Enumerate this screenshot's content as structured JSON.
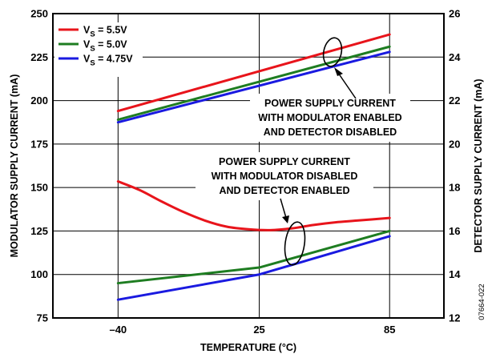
{
  "chart_data": {
    "type": "line",
    "xlabel": "TEMPERATURE (°C)",
    "ylabel_left": "MODULATOR SUPPLY CURRENT (mA)",
    "ylabel_right": "DETECTOR SUPPLY CURRENT (mA)",
    "figure_id": "07664-022",
    "xlim": [
      -70,
      110
    ],
    "ylim_left": [
      75,
      250
    ],
    "ylim_right": [
      12,
      26
    ],
    "x_ticks": [
      {
        "value": -40,
        "label": "–40"
      },
      {
        "value": 25,
        "label": "25"
      },
      {
        "value": 85,
        "label": "85"
      }
    ],
    "y_ticks_left": [
      "75",
      "100",
      "125",
      "150",
      "175",
      "200",
      "225",
      "250"
    ],
    "y_ticks_right": [
      "12",
      "14",
      "16",
      "18",
      "20",
      "22",
      "24",
      "26"
    ],
    "grid": true,
    "legend_position": "top-left",
    "legend": [
      {
        "label_main": "V",
        "label_sub": "S",
        "label_rest": " = 5.5V",
        "color": "#e8141b"
      },
      {
        "label_main": "V",
        "label_sub": "S",
        "label_rest": " = 5.0V",
        "color": "#1e7d21"
      },
      {
        "label_main": "V",
        "label_sub": "S",
        "label_rest": " = 4.75V",
        "color": "#1a1ae0"
      }
    ],
    "series": [
      {
        "group": "modulator",
        "color": "#e8141b",
        "axis": "left",
        "x": [
          -40,
          85
        ],
        "y": [
          194,
          238
        ]
      },
      {
        "group": "modulator",
        "color": "#1e7d21",
        "axis": "left",
        "x": [
          -40,
          85
        ],
        "y": [
          189,
          231
        ]
      },
      {
        "group": "modulator",
        "color": "#1a1ae0",
        "axis": "left",
        "x": [
          -40,
          85
        ],
        "y": [
          187.5,
          228
        ]
      },
      {
        "group": "detector",
        "color": "#e8141b",
        "axis": "left",
        "x": [
          -40,
          -30,
          -20,
          -10,
          0,
          10,
          20,
          30,
          40,
          50,
          60,
          70,
          85
        ],
        "y": [
          153.5,
          148.5,
          142,
          136,
          131,
          127.5,
          126,
          125.5,
          126.5,
          128.5,
          130,
          131,
          132.5
        ]
      },
      {
        "group": "detector",
        "color": "#1e7d21",
        "axis": "left",
        "x": [
          -40,
          25,
          85
        ],
        "y": [
          95,
          104,
          125
        ]
      },
      {
        "group": "detector",
        "color": "#1a1ae0",
        "axis": "left",
        "x": [
          -40,
          25,
          85
        ],
        "y": [
          85.5,
          100,
          122
        ]
      }
    ],
    "annotations": [
      {
        "lines": [
          "POWER SUPPLY CURRENT",
          "WITH MODULATOR ENABLED",
          "AND DETECTOR DISABLED"
        ]
      },
      {
        "lines": [
          "POWER SUPPLY CURRENT",
          "WITH MODULATOR DISABLED",
          "AND DETECTOR ENABLED"
        ]
      }
    ]
  }
}
